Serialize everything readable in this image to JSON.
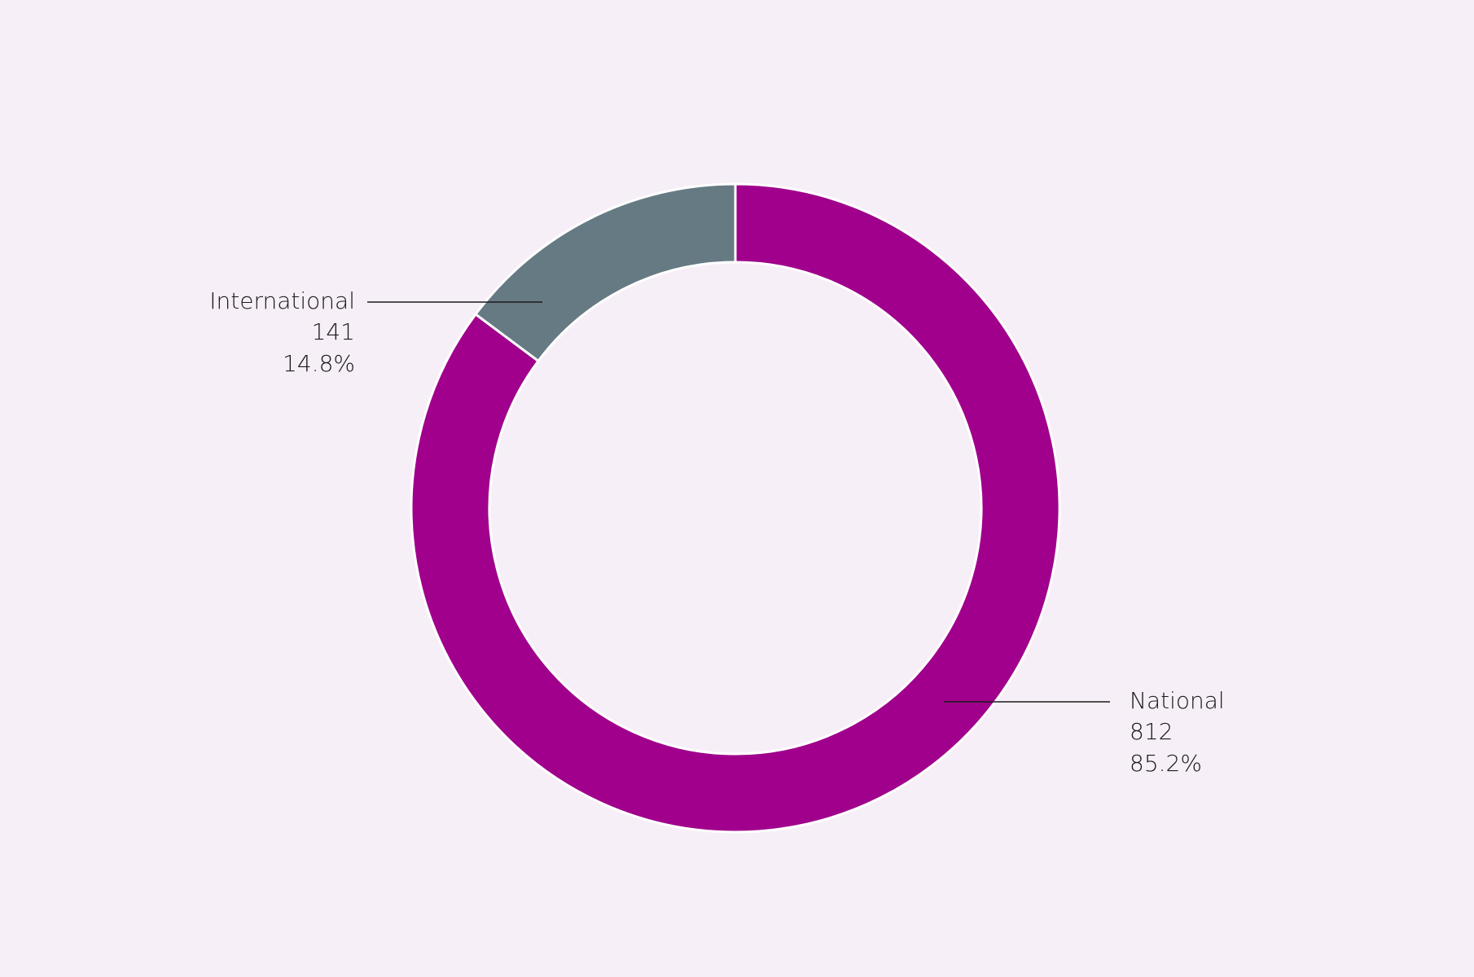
{
  "chart_data": {
    "type": "donut",
    "categories": [
      "National",
      "International"
    ],
    "values": [
      812,
      141
    ],
    "percentages": [
      {
        "value": 85.2,
        "label": "85.2%"
      },
      {
        "value": 14.8,
        "label": "14.8%"
      }
    ],
    "colors": [
      "#a0008c",
      "#667a84"
    ]
  }
}
